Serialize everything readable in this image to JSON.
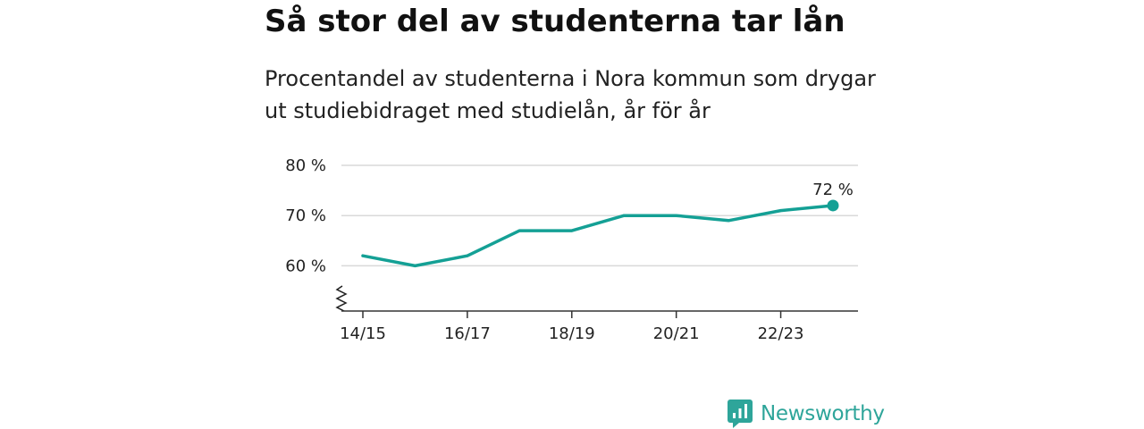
{
  "title": "Så stor del av studenterna tar lån",
  "subtitle": {
    "line1": "Procentandel av studenterna i Nora kommun som drygar",
    "line2": "ut studiebidraget med studielån, år för år"
  },
  "chart_data": {
    "type": "line",
    "title": "Så stor del av studenterna tar lån",
    "subtitle": "Procentandel av studenterna i Nora kommun som drygar ut studiebidraget med studielån, år för år",
    "xlabel": "",
    "ylabel": "",
    "categories": [
      "14/15",
      "15/16",
      "16/17",
      "17/18",
      "18/19",
      "19/20",
      "20/21",
      "21/22",
      "22/23",
      "23/24"
    ],
    "x_tick_labels": [
      "14/15",
      "16/17",
      "18/19",
      "20/21",
      "22/23"
    ],
    "series": [
      {
        "values": [
          62,
          60,
          62,
          67,
          67,
          70,
          70,
          69,
          71,
          72
        ]
      }
    ],
    "y_ticks": [
      60,
      70,
      80
    ],
    "y_tick_labels": [
      "60 %",
      "70 %",
      "80 %"
    ],
    "ylim": [
      51,
      80
    ],
    "y_axis_broken": true,
    "grid": true,
    "end_label": "72 %",
    "color": "#14a095"
  },
  "logo": {
    "text": "Newsworthy",
    "color": "#2ea59a"
  }
}
